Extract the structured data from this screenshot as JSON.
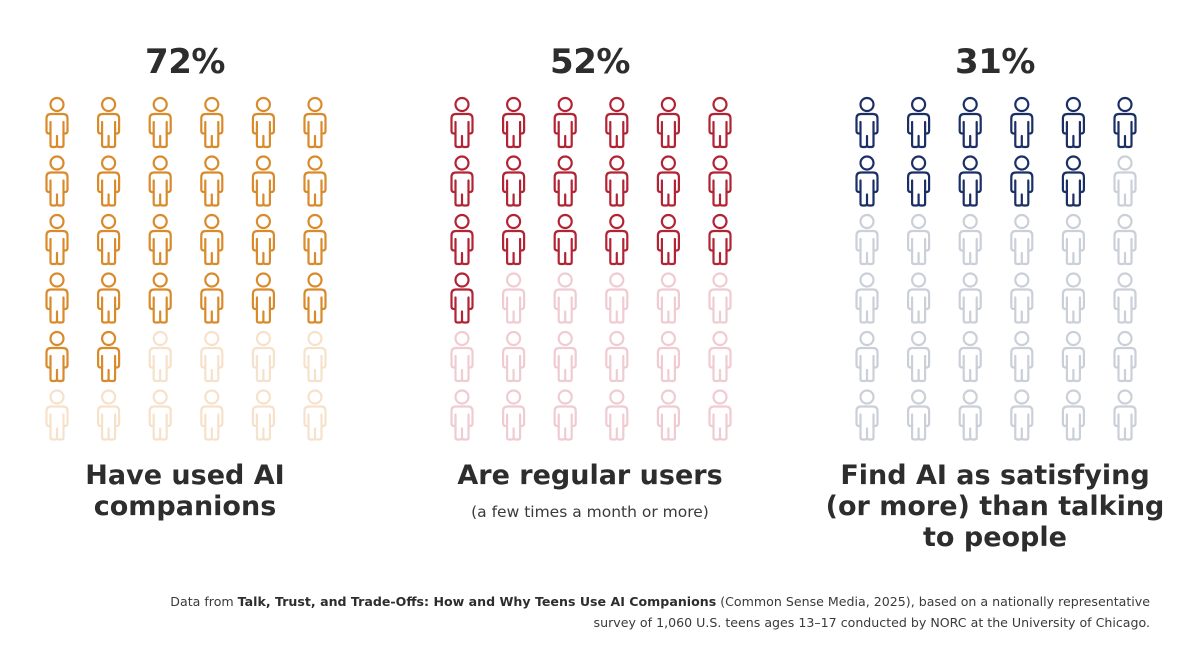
{
  "chart_data": [
    {
      "type": "isotype",
      "value": 72,
      "value_label": "72%",
      "caption_lines": [
        "Have used AI",
        "companions"
      ],
      "subcaption": "",
      "color_active": "#d98a2b",
      "color_inactive": "#f6e2cb",
      "icon": "person-icon"
    },
    {
      "type": "isotype",
      "value": 52,
      "value_label": "52%",
      "caption_lines": [
        "Are regular users"
      ],
      "subcaption": "(a few times a month or more)",
      "color_active": "#b22334",
      "color_inactive": "#efccd2",
      "icon": "person-icon"
    },
    {
      "type": "isotype",
      "value": 31,
      "value_label": "31%",
      "caption_lines": [
        "Find AI as satisfying",
        "(or more) than talking",
        "to people"
      ],
      "subcaption": "",
      "color_active": "#1b2f66",
      "color_inactive": "#cacfd8",
      "icon": "person-icon"
    }
  ],
  "source": {
    "prefix": "Data from ",
    "report_title": "Talk, Trust, and Trade-Offs: How and Why Teens Use AI Companions",
    "line1_rest": " (Common Sense Media, 2025), based on a nationally representative",
    "line2": "survey of 1,060 U.S. teens ages 13–17 conducted by NORC at the University of Chicago."
  }
}
